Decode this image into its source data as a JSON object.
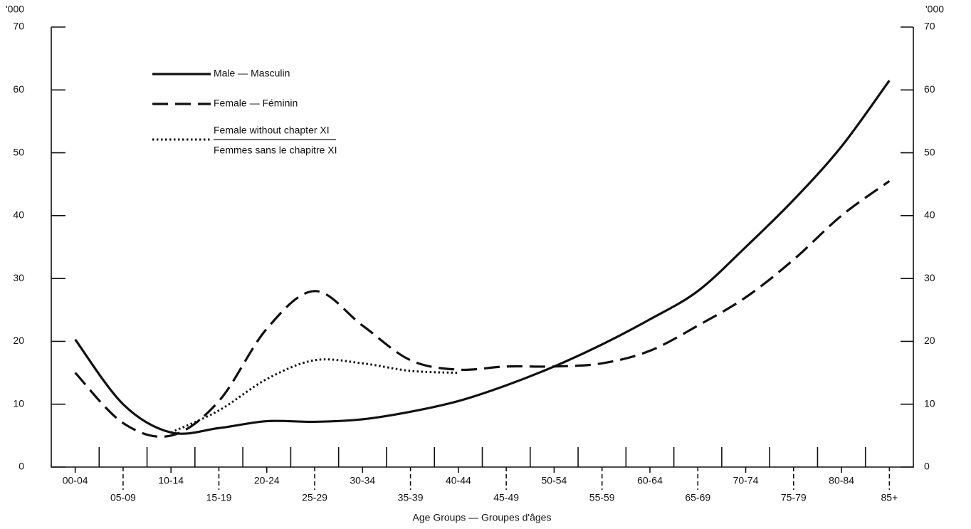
{
  "chart_data": {
    "type": "line",
    "y_unit": "'000",
    "x_label": "Age Groups — Groupes d'âges",
    "categories": [
      "00-04",
      "05-09",
      "10-14",
      "15-19",
      "20-24",
      "25-29",
      "30-34",
      "35-39",
      "40-44",
      "45-49",
      "50-54",
      "55-59",
      "60-64",
      "65-69",
      "70-74",
      "75-79",
      "80-84",
      "85+"
    ],
    "ylim": [
      0,
      70
    ],
    "yticks": [
      0,
      10,
      20,
      30,
      40,
      50,
      60,
      70
    ],
    "series": [
      {
        "name": "Male — Masculin",
        "color": "#111111",
        "dash": "solid",
        "values": [
          20.3,
          10,
          5.5,
          6.2,
          7.3,
          7.2,
          7.6,
          8.8,
          10.5,
          13,
          16,
          19.5,
          23.5,
          28,
          35,
          42.5,
          51,
          61.5
        ]
      },
      {
        "name": "Female — Féminin",
        "color": "#111111",
        "dash": "dashed",
        "values": [
          15,
          7,
          5,
          10.5,
          22,
          28,
          22.5,
          17,
          15.5,
          16,
          16,
          16.5,
          18.5,
          22.5,
          27,
          33,
          40,
          45.5
        ]
      },
      {
        "name": "Female without chapter XI",
        "name_2": "Femmes sans le chapitre XI",
        "color": "#111111",
        "dash": "dotted",
        "values": [
          null,
          null,
          5.5,
          9,
          14,
          17,
          16.5,
          15.3,
          15,
          null,
          null,
          null,
          null,
          null,
          null,
          null,
          null,
          null
        ]
      }
    ]
  }
}
